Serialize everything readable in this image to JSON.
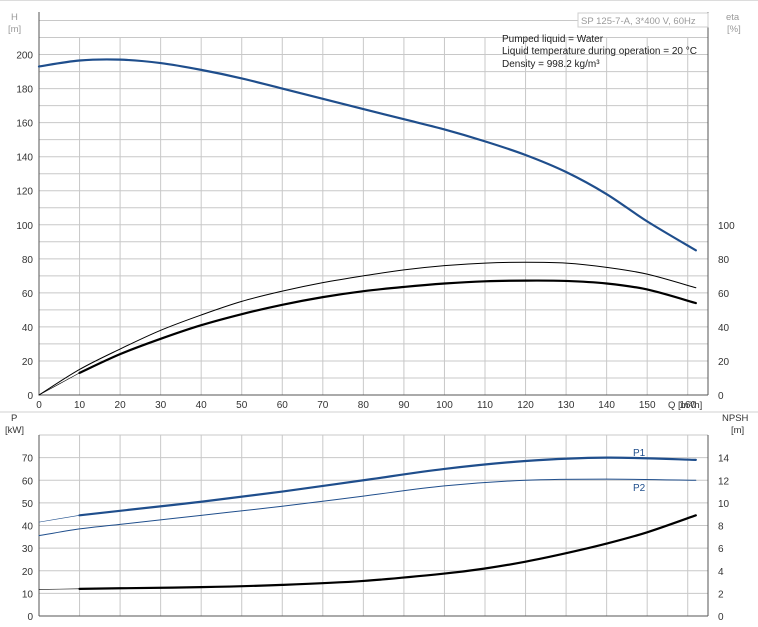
{
  "header": {
    "product_label": "SP 125-7-A, 3*400 V, 60Hz",
    "info_lines": [
      "Pumped liquid = Water",
      "Liquid temperature during operation = 20 °C",
      "Density = 998.2 kg/m³"
    ]
  },
  "colors": {
    "blue_curve": "#1f4e8c",
    "black_curve": "#000000",
    "grid": "#c8c8c8",
    "axis": "#555555"
  },
  "chart_data": [
    {
      "type": "line",
      "name": "top-panel",
      "x_axis": {
        "label": "Q [m³/h]",
        "range": [
          0,
          165
        ],
        "ticks": [
          0,
          10,
          20,
          30,
          40,
          50,
          60,
          70,
          80,
          90,
          100,
          110,
          120,
          130,
          140,
          150,
          160
        ]
      },
      "y_left": {
        "label_top": "H",
        "label_unit": "[m]",
        "range": [
          0,
          225
        ],
        "ticks": [
          0,
          20,
          40,
          60,
          80,
          100,
          120,
          140,
          160,
          180,
          200
        ]
      },
      "y_right": {
        "label_top": "eta",
        "label_unit": "[%]",
        "range": [
          0,
          225
        ],
        "ticks": [
          0,
          20,
          40,
          60,
          80,
          100
        ]
      },
      "grid": true,
      "series": [
        {
          "name": "",
          "axis": "left",
          "style": "blue-thick",
          "x": [
            0,
            10,
            20,
            30,
            40,
            50,
            60,
            70,
            80,
            90,
            100,
            110,
            120,
            130,
            140,
            150,
            162
          ],
          "y": [
            193,
            196.5,
            197,
            195,
            191,
            186,
            180,
            174,
            168,
            162,
            156,
            149,
            141,
            131,
            118,
            102,
            85
          ]
        },
        {
          "name": "",
          "axis": "right",
          "style": "black-thin",
          "x": [
            0,
            10,
            20,
            30,
            40,
            50,
            60,
            70,
            80,
            90,
            100,
            110,
            120,
            130,
            140,
            150,
            162
          ],
          "y": [
            0,
            15,
            27,
            38,
            47,
            55,
            61,
            66,
            70,
            73.5,
            76,
            77.5,
            78,
            77.5,
            75,
            71,
            63
          ]
        },
        {
          "name": "",
          "axis": "right",
          "style": "black-thick",
          "x": [
            10,
            20,
            30,
            40,
            50,
            60,
            70,
            80,
            90,
            100,
            110,
            120,
            130,
            140,
            150,
            162
          ],
          "y": [
            13,
            24,
            33,
            41,
            47.5,
            53,
            57.5,
            61,
            63.5,
            65.5,
            66.8,
            67.2,
            67,
            65.5,
            62,
            54
          ]
        },
        {
          "name": "",
          "axis": "right",
          "style": "black-hairline",
          "x": [
            0,
            10
          ],
          "y": [
            0,
            13
          ]
        }
      ]
    },
    {
      "type": "line",
      "name": "bottom-panel",
      "x_axis": {
        "label": "",
        "range": [
          0,
          165
        ],
        "ticks": []
      },
      "y_left": {
        "label_top": "P",
        "label_unit": "[kW]",
        "range": [
          0,
          80
        ],
        "ticks": [
          0,
          10,
          20,
          30,
          40,
          50,
          60,
          70
        ]
      },
      "y_right": {
        "label_top": "NPSH",
        "label_unit": "[m]",
        "range": [
          0,
          16
        ],
        "ticks": [
          0,
          2,
          4,
          6,
          8,
          10,
          12,
          14
        ]
      },
      "grid": true,
      "series": [
        {
          "name": "P1",
          "axis": "left",
          "style": "blue-thick",
          "x": [
            10,
            20,
            40,
            60,
            80,
            100,
            120,
            140,
            162
          ],
          "y": [
            44.5,
            46.5,
            50.5,
            55,
            60,
            65,
            68.5,
            70,
            69
          ]
        },
        {
          "name": "P2",
          "axis": "left",
          "style": "blue-thin",
          "x": [
            0,
            10,
            20,
            40,
            60,
            80,
            100,
            120,
            140,
            162
          ],
          "y": [
            35.5,
            38.5,
            40.5,
            44.5,
            48.5,
            53,
            57.5,
            60,
            60.5,
            60
          ]
        },
        {
          "name": "",
          "axis": "left",
          "style": "blue-hairline",
          "x": [
            0,
            10
          ],
          "y": [
            41.5,
            44.5
          ]
        },
        {
          "name": "",
          "axis": "right",
          "style": "black-thick",
          "x": [
            10,
            20,
            40,
            60,
            80,
            100,
            110,
            120,
            130,
            140,
            150,
            162
          ],
          "y": [
            2.4,
            2.45,
            2.55,
            2.75,
            3.1,
            3.75,
            4.2,
            4.8,
            5.55,
            6.4,
            7.4,
            8.9
          ]
        },
        {
          "name": "",
          "axis": "right",
          "style": "black-hairline",
          "x": [
            0,
            10
          ],
          "y": [
            2.35,
            2.4
          ]
        }
      ]
    }
  ]
}
